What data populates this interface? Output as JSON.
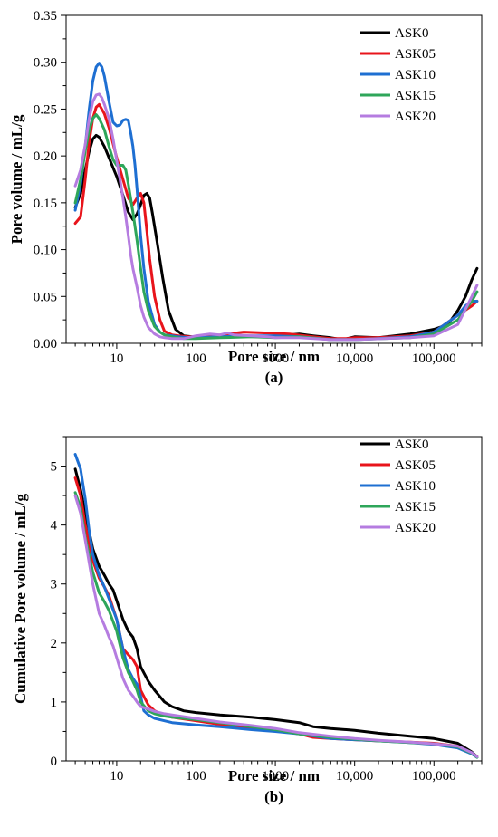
{
  "colors": {
    "ASK0": "#000000",
    "ASK05": "#e8141b",
    "ASK10": "#1e6fd2",
    "ASK15": "#2ea65a",
    "ASK20": "#b57ce0"
  },
  "chart_data": [
    {
      "type": "line",
      "panel_label": "(a)",
      "xlabel": "Pore size / nm",
      "ylabel": "Pore volume / mL/g",
      "xscale": "log",
      "xlim": [
        2.3,
        400000
      ],
      "ylim": [
        0,
        0.35
      ],
      "xticks": [
        {
          "value": 10,
          "label": "10"
        },
        {
          "value": 100,
          "label": "100"
        },
        {
          "value": 1000,
          "label": "1000"
        },
        {
          "value": 10000,
          "label": "10,000"
        },
        {
          "value": 100000,
          "label": "100,000"
        }
      ],
      "yticks": [
        {
          "value": 0,
          "label": "0.00"
        },
        {
          "value": 0.05,
          "label": "0.05"
        },
        {
          "value": 0.1,
          "label": "0.10"
        },
        {
          "value": 0.15,
          "label": "0.15"
        },
        {
          "value": 0.2,
          "label": "0.20"
        },
        {
          "value": 0.25,
          "label": "0.25"
        },
        {
          "value": 0.3,
          "label": "0.30"
        },
        {
          "value": 0.35,
          "label": "0.35"
        }
      ],
      "legend_position": "top-right",
      "series": [
        {
          "name": "ASK0",
          "x": [
            3,
            3.5,
            4,
            4.5,
            5,
            5.5,
            6,
            7,
            8,
            10,
            12,
            14,
            16,
            18,
            20,
            22,
            24,
            26,
            28,
            32,
            38,
            45,
            55,
            70,
            90,
            150,
            300,
            600,
            1000,
            2000,
            3000,
            5000,
            7000,
            10000,
            20000,
            50000,
            100000,
            150000,
            200000,
            250000,
            300000,
            350000
          ],
          "y": [
            0.145,
            0.16,
            0.185,
            0.205,
            0.218,
            0.222,
            0.22,
            0.21,
            0.198,
            0.178,
            0.158,
            0.14,
            0.132,
            0.138,
            0.148,
            0.158,
            0.16,
            0.155,
            0.14,
            0.11,
            0.07,
            0.035,
            0.015,
            0.008,
            0.007,
            0.008,
            0.008,
            0.007,
            0.008,
            0.01,
            0.008,
            0.006,
            0.004,
            0.007,
            0.006,
            0.01,
            0.015,
            0.02,
            0.035,
            0.05,
            0.068,
            0.08
          ]
        },
        {
          "name": "ASK05",
          "x": [
            3,
            3.5,
            4,
            4.5,
            5,
            5.5,
            6,
            7,
            8,
            10,
            12,
            14,
            16,
            18,
            20,
            22,
            24,
            26,
            30,
            35,
            40,
            50,
            60,
            80,
            100,
            200,
            400,
            800,
            1500,
            3000,
            5000,
            8000,
            10000,
            20000,
            50000,
            100000,
            200000,
            300000,
            350000
          ],
          "y": [
            0.128,
            0.135,
            0.175,
            0.215,
            0.24,
            0.252,
            0.255,
            0.245,
            0.23,
            0.198,
            0.175,
            0.155,
            0.148,
            0.155,
            0.16,
            0.15,
            0.12,
            0.09,
            0.05,
            0.025,
            0.013,
            0.009,
            0.008,
            0.007,
            0.007,
            0.009,
            0.012,
            0.011,
            0.01,
            0.007,
            0.005,
            0.005,
            0.006,
            0.006,
            0.008,
            0.012,
            0.03,
            0.04,
            0.045
          ]
        },
        {
          "name": "ASK10",
          "x": [
            3,
            3.5,
            4,
            4.5,
            5,
            5.5,
            6,
            6.5,
            7,
            8,
            9,
            10,
            11,
            12,
            13,
            14,
            15,
            16,
            17,
            18,
            19,
            20,
            22,
            25,
            30,
            35,
            40,
            50,
            60,
            80,
            100,
            200,
            500,
            1000,
            2000,
            5000,
            10000,
            20000,
            50000,
            100000,
            200000,
            250000,
            300000,
            350000
          ],
          "y": [
            0.142,
            0.17,
            0.21,
            0.25,
            0.28,
            0.295,
            0.299,
            0.295,
            0.285,
            0.258,
            0.236,
            0.232,
            0.233,
            0.238,
            0.239,
            0.238,
            0.225,
            0.21,
            0.19,
            0.165,
            0.14,
            0.115,
            0.08,
            0.045,
            0.02,
            0.012,
            0.009,
            0.008,
            0.007,
            0.006,
            0.006,
            0.007,
            0.008,
            0.008,
            0.007,
            0.004,
            0.004,
            0.005,
            0.007,
            0.012,
            0.03,
            0.04,
            0.045,
            0.045
          ]
        },
        {
          "name": "ASK15",
          "x": [
            3,
            3.5,
            4,
            4.5,
            5,
            5.5,
            6,
            7,
            8,
            9,
            10,
            11,
            12,
            13,
            14,
            16,
            18,
            20,
            22,
            25,
            30,
            35,
            40,
            50,
            70,
            100,
            200,
            500,
            1000,
            2000,
            5000,
            10000,
            50000,
            100000,
            200000,
            300000,
            350000
          ],
          "y": [
            0.15,
            0.175,
            0.205,
            0.228,
            0.24,
            0.244,
            0.24,
            0.228,
            0.21,
            0.196,
            0.19,
            0.19,
            0.19,
            0.185,
            0.17,
            0.14,
            0.11,
            0.08,
            0.055,
            0.035,
            0.018,
            0.012,
            0.009,
            0.007,
            0.005,
            0.005,
            0.006,
            0.007,
            0.006,
            0.007,
            0.004,
            0.004,
            0.006,
            0.01,
            0.025,
            0.045,
            0.055
          ]
        },
        {
          "name": "ASK20",
          "x": [
            3,
            3.5,
            4,
            4.5,
            5,
            5.5,
            6,
            6.5,
            7,
            8,
            9,
            10,
            11,
            12,
            13,
            14,
            15,
            16,
            18,
            20,
            22,
            25,
            30,
            35,
            40,
            50,
            70,
            100,
            150,
            200,
            250,
            300,
            500,
            800,
            1000,
            2000,
            5000,
            10000,
            50000,
            100000,
            200000,
            300000,
            350000
          ],
          "y": [
            0.168,
            0.185,
            0.212,
            0.24,
            0.258,
            0.265,
            0.266,
            0.262,
            0.255,
            0.24,
            0.218,
            0.195,
            0.175,
            0.155,
            0.135,
            0.115,
            0.095,
            0.08,
            0.06,
            0.04,
            0.028,
            0.017,
            0.01,
            0.007,
            0.006,
            0.005,
            0.005,
            0.008,
            0.01,
            0.009,
            0.011,
            0.009,
            0.008,
            0.007,
            0.006,
            0.006,
            0.004,
            0.004,
            0.006,
            0.008,
            0.02,
            0.05,
            0.062
          ]
        }
      ]
    },
    {
      "type": "line",
      "panel_label": "(b)",
      "xlabel": "Pore size / nm",
      "ylabel": "Cumulative Pore volume / mL/g",
      "xscale": "log",
      "xlim": [
        2.3,
        400000
      ],
      "ylim": [
        0,
        5.5
      ],
      "xticks": [
        {
          "value": 10,
          "label": "10"
        },
        {
          "value": 100,
          "label": "100"
        },
        {
          "value": 1000,
          "label": "1000"
        },
        {
          "value": 10000,
          "label": "10,000"
        },
        {
          "value": 100000,
          "label": "100,000"
        }
      ],
      "yticks": [
        {
          "value": 0,
          "label": "0"
        },
        {
          "value": 1,
          "label": "1"
        },
        {
          "value": 2,
          "label": "2"
        },
        {
          "value": 3,
          "label": "3"
        },
        {
          "value": 4,
          "label": "4"
        },
        {
          "value": 5,
          "label": "5"
        }
      ],
      "legend_position": "top-right",
      "series": [
        {
          "name": "ASK0",
          "x": [
            3,
            3.5,
            4,
            5,
            6,
            7,
            8,
            9,
            10,
            12,
            14,
            16,
            18,
            20,
            25,
            30,
            40,
            50,
            70,
            100,
            200,
            500,
            1000,
            2000,
            3000,
            5000,
            10000,
            20000,
            50000,
            100000,
            200000,
            300000,
            350000
          ],
          "y": [
            4.95,
            4.6,
            4.2,
            3.6,
            3.3,
            3.15,
            3.0,
            2.9,
            2.72,
            2.4,
            2.2,
            2.1,
            1.9,
            1.6,
            1.35,
            1.2,
            1.0,
            0.92,
            0.85,
            0.82,
            0.78,
            0.74,
            0.7,
            0.65,
            0.58,
            0.55,
            0.52,
            0.47,
            0.42,
            0.38,
            0.3,
            0.15,
            0.07
          ]
        },
        {
          "name": "ASK05",
          "x": [
            3,
            3.5,
            4,
            5,
            6,
            7,
            8,
            10,
            12,
            14,
            16,
            18,
            20,
            25,
            30,
            40,
            50,
            100,
            200,
            500,
            1000,
            2000,
            3000,
            5000,
            10000,
            20000,
            50000,
            100000,
            200000,
            300000,
            350000
          ],
          "y": [
            4.8,
            4.5,
            4.0,
            3.4,
            3.1,
            2.95,
            2.8,
            2.4,
            1.9,
            1.8,
            1.72,
            1.6,
            1.2,
            0.95,
            0.85,
            0.78,
            0.74,
            0.68,
            0.62,
            0.56,
            0.52,
            0.46,
            0.4,
            0.38,
            0.36,
            0.34,
            0.32,
            0.3,
            0.25,
            0.13,
            0.07
          ]
        },
        {
          "name": "ASK10",
          "x": [
            3,
            3.5,
            4,
            4.5,
            5,
            6,
            7,
            8,
            10,
            12,
            14,
            16,
            18,
            20,
            22,
            25,
            30,
            40,
            50,
            100,
            200,
            500,
            1000,
            2000,
            5000,
            10000,
            20000,
            50000,
            100000,
            200000,
            300000,
            350000
          ],
          "y": [
            5.2,
            4.95,
            4.45,
            3.9,
            3.5,
            3.15,
            2.95,
            2.75,
            2.4,
            1.9,
            1.55,
            1.4,
            1.3,
            1.1,
            0.85,
            0.78,
            0.72,
            0.68,
            0.65,
            0.61,
            0.58,
            0.53,
            0.5,
            0.46,
            0.38,
            0.36,
            0.34,
            0.31,
            0.28,
            0.22,
            0.12,
            0.06
          ]
        },
        {
          "name": "ASK15",
          "x": [
            3,
            3.5,
            4,
            5,
            6,
            7,
            8,
            10,
            12,
            14,
            16,
            18,
            20,
            25,
            30,
            40,
            50,
            100,
            200,
            500,
            1000,
            2000,
            5000,
            10000,
            20000,
            50000,
            100000,
            200000,
            300000,
            350000
          ],
          "y": [
            4.55,
            4.3,
            3.8,
            3.2,
            2.85,
            2.7,
            2.55,
            2.2,
            1.75,
            1.5,
            1.35,
            1.2,
            1.0,
            0.85,
            0.8,
            0.76,
            0.74,
            0.7,
            0.65,
            0.58,
            0.53,
            0.46,
            0.4,
            0.37,
            0.34,
            0.31,
            0.29,
            0.24,
            0.13,
            0.06
          ]
        },
        {
          "name": "ASK20",
          "x": [
            3,
            3.5,
            4,
            5,
            6,
            7,
            8,
            9,
            10,
            12,
            14,
            16,
            18,
            20,
            25,
            30,
            40,
            50,
            100,
            200,
            500,
            1000,
            2000,
            5000,
            10000,
            20000,
            50000,
            100000,
            200000,
            300000,
            350000
          ],
          "y": [
            4.5,
            4.2,
            3.75,
            3.0,
            2.5,
            2.3,
            2.1,
            1.95,
            1.75,
            1.4,
            1.2,
            1.1,
            1.0,
            0.92,
            0.88,
            0.84,
            0.8,
            0.78,
            0.72,
            0.66,
            0.6,
            0.55,
            0.48,
            0.42,
            0.38,
            0.35,
            0.32,
            0.29,
            0.25,
            0.14,
            0.07
          ]
        }
      ]
    }
  ]
}
